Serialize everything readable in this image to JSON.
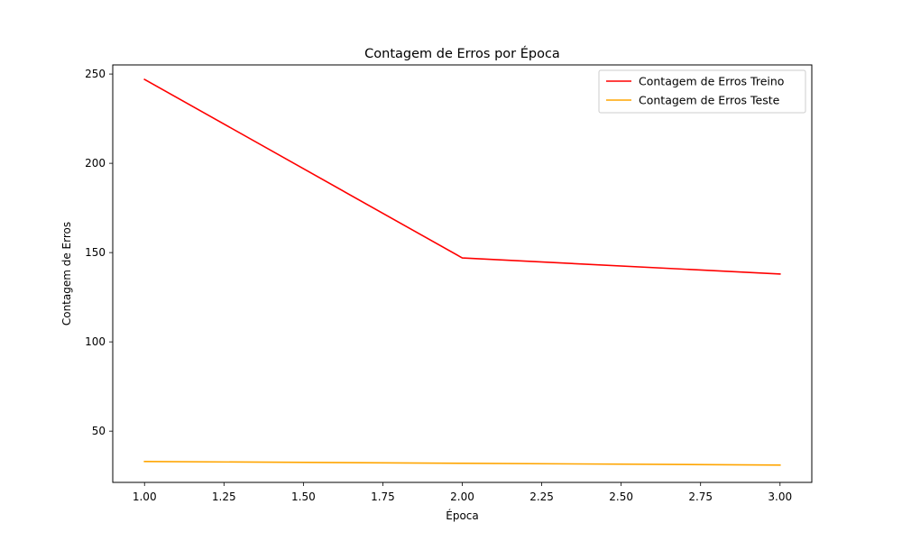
{
  "chart_data": {
    "type": "line",
    "title": "Contagem de Erros por Época",
    "xlabel": "Época",
    "ylabel": "Contagem de Erros",
    "x": [
      1,
      2,
      3
    ],
    "xlim": [
      0.9,
      3.1
    ],
    "ylim": [
      21.3,
      255.1
    ],
    "xticks": [
      1.0,
      1.25,
      1.5,
      1.75,
      2.0,
      2.25,
      2.5,
      2.75,
      3.0
    ],
    "xtick_labels": [
      "1.00",
      "1.25",
      "1.50",
      "1.75",
      "2.00",
      "2.25",
      "2.50",
      "2.75",
      "3.00"
    ],
    "yticks": [
      50,
      100,
      150,
      200,
      250
    ],
    "ytick_labels": [
      "50",
      "100",
      "150",
      "200",
      "250"
    ],
    "grid": false,
    "legend_position": "top-right",
    "series": [
      {
        "name": "Contagem de Erros Treino",
        "color": "#ff0000",
        "values": [
          247,
          147,
          138
        ]
      },
      {
        "name": "Contagem de Erros Teste",
        "color": "#ffa500",
        "values": [
          33,
          32,
          31
        ]
      }
    ]
  }
}
